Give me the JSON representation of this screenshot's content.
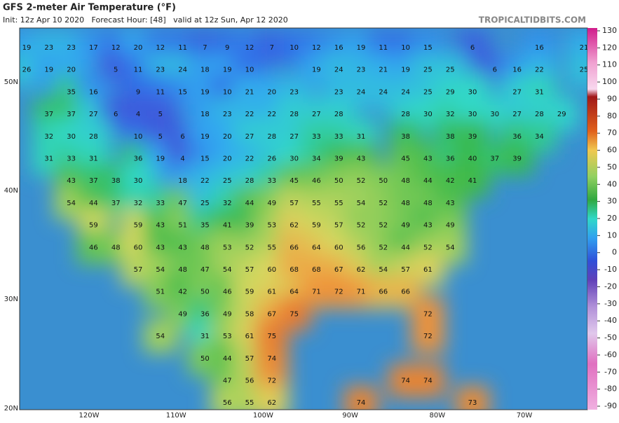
{
  "header": {
    "title": "GFS 2-meter Air Temperature (°F)",
    "subtitle": "Init: 12z Apr 10 2020   Forecast Hour: [48]   valid at 12z Sun, Apr 12 2020",
    "brand": "TROPICALTIDBITS.COM"
  },
  "map": {
    "lat_labels": [
      "50N",
      "40N",
      "30N",
      "20N"
    ],
    "lon_labels": [
      "120W",
      "110W",
      "100W",
      "90W",
      "80W",
      "70W"
    ],
    "temperature_rows": [
      [
        19,
        23,
        23,
        17,
        12,
        20,
        12,
        11,
        7,
        9,
        12,
        7,
        10,
        12,
        16,
        19,
        11,
        10,
        15,
        null,
        6,
        null,
        null,
        16,
        null,
        21
      ],
      [
        26,
        19,
        20,
        null,
        5,
        11,
        23,
        24,
        18,
        19,
        10,
        null,
        null,
        19,
        24,
        23,
        21,
        19,
        25,
        25,
        null,
        6,
        16,
        22,
        null,
        25
      ],
      [
        null,
        null,
        35,
        16,
        null,
        9,
        11,
        15,
        19,
        10,
        21,
        20,
        23,
        null,
        23,
        24,
        24,
        24,
        25,
        29,
        30,
        null,
        27,
        31,
        null,
        null
      ],
      [
        null,
        37,
        37,
        27,
        6,
        4,
        5,
        null,
        18,
        23,
        22,
        22,
        28,
        27,
        28,
        null,
        null,
        28,
        30,
        32,
        30,
        30,
        27,
        28,
        29,
        null
      ],
      [
        null,
        32,
        30,
        28,
        null,
        10,
        5,
        6,
        19,
        20,
        27,
        28,
        27,
        33,
        33,
        31,
        null,
        38,
        null,
        38,
        39,
        null,
        36,
        34,
        null,
        null
      ],
      [
        null,
        31,
        33,
        31,
        null,
        36,
        19,
        4,
        15,
        20,
        22,
        26,
        30,
        34,
        39,
        43,
        null,
        45,
        43,
        36,
        40,
        37,
        39,
        null,
        null,
        null
      ],
      [
        null,
        null,
        43,
        37,
        38,
        30,
        null,
        18,
        22,
        25,
        28,
        33,
        45,
        46,
        50,
        52,
        50,
        48,
        44,
        42,
        41,
        null,
        null,
        null,
        null,
        null
      ],
      [
        null,
        null,
        54,
        44,
        37,
        32,
        33,
        47,
        25,
        32,
        44,
        49,
        57,
        55,
        55,
        54,
        52,
        48,
        48,
        43,
        null,
        null,
        null,
        null,
        null,
        null
      ],
      [
        null,
        null,
        null,
        59,
        null,
        59,
        43,
        51,
        35,
        41,
        39,
        53,
        62,
        59,
        57,
        52,
        52,
        49,
        43,
        49,
        null,
        null,
        null,
        null,
        null,
        null
      ],
      [
        null,
        null,
        null,
        46,
        48,
        60,
        43,
        43,
        48,
        53,
        52,
        55,
        66,
        64,
        60,
        56,
        52,
        44,
        52,
        54,
        null,
        null,
        null,
        null,
        null,
        null
      ],
      [
        null,
        null,
        null,
        null,
        null,
        57,
        54,
        48,
        47,
        54,
        57,
        60,
        68,
        68,
        67,
        62,
        54,
        57,
        61,
        null,
        null,
        null,
        null,
        null,
        null,
        null
      ],
      [
        null,
        null,
        null,
        null,
        null,
        null,
        51,
        42,
        50,
        46,
        59,
        61,
        64,
        71,
        72,
        71,
        66,
        66,
        null,
        null,
        null,
        null,
        null,
        null,
        null,
        null
      ],
      [
        null,
        null,
        null,
        null,
        null,
        null,
        null,
        49,
        36,
        49,
        58,
        67,
        75,
        null,
        null,
        null,
        null,
        null,
        72,
        null,
        null,
        null,
        null,
        null,
        null,
        null
      ],
      [
        null,
        null,
        null,
        null,
        null,
        null,
        54,
        null,
        31,
        53,
        61,
        75,
        null,
        null,
        null,
        null,
        null,
        null,
        72,
        null,
        null,
        null,
        null,
        null,
        null,
        null
      ],
      [
        null,
        null,
        null,
        null,
        null,
        null,
        null,
        null,
        50,
        44,
        57,
        74,
        null,
        null,
        null,
        null,
        null,
        null,
        null,
        null,
        null,
        null,
        null,
        null,
        null,
        null
      ],
      [
        null,
        null,
        null,
        null,
        null,
        null,
        null,
        null,
        null,
        47,
        56,
        72,
        null,
        null,
        null,
        null,
        null,
        74,
        74,
        null,
        null,
        null,
        null,
        null,
        null,
        null
      ],
      [
        null,
        null,
        null,
        null,
        null,
        null,
        null,
        null,
        null,
        56,
        55,
        62,
        null,
        null,
        null,
        74,
        null,
        null,
        null,
        null,
        73,
        null,
        null,
        null,
        null,
        null
      ]
    ]
  },
  "colorbar": {
    "ticks": [
      130,
      120,
      110,
      100,
      90,
      80,
      70,
      60,
      50,
      40,
      30,
      20,
      10,
      0,
      -10,
      -20,
      -30,
      -40,
      -50,
      -60,
      -70,
      -80,
      -90
    ]
  }
}
